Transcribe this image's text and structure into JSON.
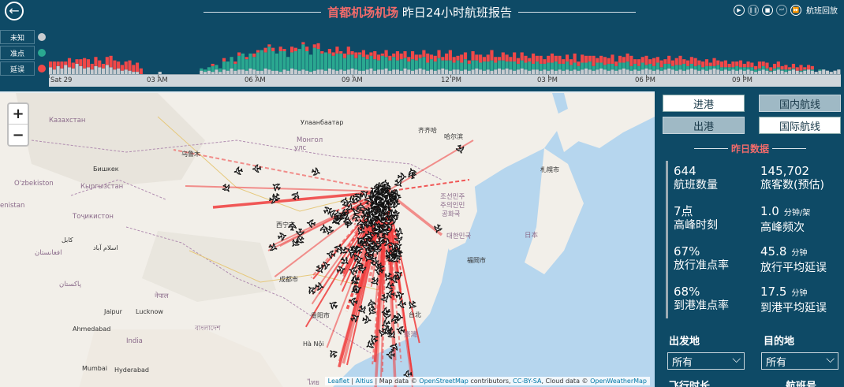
{
  "header": {
    "title_accent": "首都机场机场",
    "title_rest": "昨日24小时航班报告",
    "playback_label": "航班回放"
  },
  "legend": [
    {
      "label": "未知",
      "color": "#c8ccd0"
    },
    {
      "label": "准点",
      "color": "#2aa890"
    },
    {
      "label": "延误",
      "color": "#f04848"
    }
  ],
  "timeline": {
    "ticks": [
      "Sat 29",
      "03 AM",
      "06 AM",
      "09 AM",
      "12 PM",
      "03 PM",
      "06 PM",
      "09 PM"
    ],
    "unknown": [
      6,
      4,
      7,
      5,
      8,
      6,
      5,
      9,
      7,
      5,
      6,
      4,
      7,
      6,
      5,
      8,
      6,
      4,
      5,
      3,
      4,
      3,
      2,
      2,
      0,
      0,
      0,
      0,
      0,
      2,
      0,
      0,
      0,
      0,
      0,
      0,
      0,
      0,
      0,
      0,
      3,
      2,
      3,
      2,
      4,
      2,
      4,
      3,
      5,
      3,
      4,
      4,
      3,
      5,
      4,
      3,
      3,
      5,
      4,
      3,
      3,
      2,
      4,
      3,
      5,
      4,
      3,
      4,
      3,
      2,
      3,
      4,
      4,
      3,
      5,
      4,
      3,
      4,
      3,
      4,
      5,
      4,
      3,
      3,
      4,
      5,
      3,
      4,
      4,
      5,
      3,
      4,
      4,
      3,
      5,
      4,
      3,
      4,
      5,
      4,
      3,
      4,
      3,
      4,
      5,
      4,
      3,
      4,
      4,
      3,
      4,
      3,
      4,
      5,
      4,
      3,
      4,
      3,
      4,
      5,
      4,
      5,
      4,
      3,
      4,
      5,
      4,
      3,
      4,
      4,
      3,
      4,
      3,
      4,
      3,
      4,
      3,
      4,
      3,
      4,
      3,
      4,
      5,
      4,
      3,
      4,
      5,
      4,
      3,
      4,
      3,
      4,
      5,
      4,
      3,
      4,
      3,
      4,
      5,
      4,
      3,
      4,
      3,
      4,
      5,
      4,
      3,
      4,
      3,
      4,
      5,
      4,
      3,
      4,
      3,
      4,
      5,
      4,
      3,
      4,
      3,
      4,
      3,
      4,
      3,
      4,
      3,
      2,
      3,
      4,
      3,
      2,
      3,
      4,
      3,
      2,
      3,
      4,
      3,
      2,
      3,
      4,
      3,
      2,
      3,
      4,
      3,
      2,
      3,
      4
    ],
    "ontime": [
      0,
      0,
      0,
      0,
      0,
      0,
      0,
      0,
      0,
      0,
      0,
      0,
      0,
      0,
      0,
      0,
      0,
      0,
      0,
      0,
      0,
      0,
      0,
      0,
      0,
      0,
      0,
      0,
      0,
      0,
      0,
      0,
      0,
      0,
      0,
      0,
      0,
      0,
      0,
      0,
      2,
      2,
      3,
      5,
      4,
      3,
      7,
      8,
      10,
      6,
      12,
      14,
      10,
      13,
      11,
      16,
      18,
      14,
      20,
      17,
      15,
      18,
      16,
      12,
      14,
      16,
      19,
      22,
      17,
      15,
      20,
      18,
      14,
      16,
      13,
      12,
      15,
      14,
      11,
      13,
      12,
      10,
      14,
      12,
      9,
      11,
      10,
      8,
      12,
      10,
      9,
      11,
      8,
      10,
      9,
      7,
      10,
      8,
      9,
      11,
      7,
      9,
      8,
      10,
      7,
      8,
      9,
      6,
      8,
      7,
      9,
      6,
      8,
      7,
      6,
      8,
      7,
      9,
      6,
      7,
      8,
      6,
      7,
      8,
      5,
      7,
      6,
      8,
      5,
      7,
      6,
      5,
      7,
      6,
      8,
      5,
      6,
      7,
      5,
      6,
      4,
      6,
      5,
      7,
      4,
      6,
      5,
      4,
      6,
      5,
      4,
      6,
      5,
      7,
      4,
      5,
      4,
      6,
      3,
      5,
      4,
      6,
      3,
      5,
      4,
      3,
      5,
      4,
      6,
      3,
      4,
      3,
      5,
      2,
      4,
      3,
      2,
      4,
      3,
      2,
      3,
      2,
      4,
      2,
      3,
      2,
      3,
      2,
      2,
      3,
      2,
      1,
      2,
      2,
      1,
      2,
      1,
      1,
      0,
      1,
      1,
      0,
      1,
      0,
      1,
      0
    ],
    "delayed": [
      5,
      7,
      4,
      6,
      3,
      8,
      5,
      4,
      6,
      9,
      7,
      5,
      8,
      6,
      4,
      7,
      10,
      8,
      6,
      5,
      7,
      9,
      6,
      8,
      5,
      0,
      0,
      0,
      0,
      0,
      0,
      0,
      0,
      0,
      0,
      0,
      0,
      0,
      0,
      0,
      0,
      0,
      0,
      2,
      0,
      0,
      3,
      0,
      0,
      2,
      3,
      0,
      2,
      0,
      3,
      2,
      0,
      4,
      2,
      3,
      0,
      4,
      2,
      0,
      5,
      3,
      0,
      2,
      4,
      0,
      3,
      5,
      2,
      0,
      4,
      3,
      6,
      2,
      4,
      7,
      3,
      5,
      2,
      6,
      4,
      3,
      7,
      5,
      2,
      6,
      4,
      3,
      8,
      5,
      6,
      4,
      7,
      5,
      3,
      6,
      8,
      4,
      5,
      7,
      3,
      6,
      9,
      5,
      4,
      7,
      6,
      3,
      8,
      5,
      7,
      4,
      6,
      9,
      5,
      3,
      7,
      6,
      4,
      8,
      5,
      7,
      6,
      3,
      9,
      5,
      7,
      4,
      6,
      8,
      5,
      7,
      4,
      6,
      5,
      8,
      4,
      7,
      6,
      5,
      9,
      4,
      6,
      7,
      5,
      8,
      4,
      6,
      5,
      7,
      9,
      4,
      6,
      5,
      8,
      4,
      7,
      5,
      6,
      4,
      7,
      5,
      6,
      8,
      4,
      5,
      6,
      7,
      4,
      5,
      6,
      3,
      7,
      4,
      5,
      6,
      3,
      5,
      4,
      6,
      3,
      5,
      4,
      3,
      6,
      4,
      5,
      3,
      4,
      5,
      3,
      4,
      2,
      4,
      3,
      5,
      2,
      4,
      3
    ]
  },
  "map": {
    "labels": [
      {
        "text": "Казахстан",
        "kind": "region"
      },
      {
        "text": "Улаанбаатар",
        "kind": "city"
      },
      {
        "text": "Монгол",
        "kind": "region"
      },
      {
        "text": "улс",
        "kind": "region"
      },
      {
        "text": "齐齐哈",
        "kind": "city"
      },
      {
        "text": "哈尔滨",
        "kind": "city"
      },
      {
        "text": "札幌市",
        "kind": "city"
      },
      {
        "text": "乌鲁木",
        "kind": "city"
      },
      {
        "text": "Бишкек",
        "kind": "city"
      },
      {
        "text": "O'zbekiston",
        "kind": "region"
      },
      {
        "text": "Кыргызстан",
        "kind": "region"
      },
      {
        "text": "enistan",
        "kind": "region"
      },
      {
        "text": "Тоҷикистон",
        "kind": "region"
      },
      {
        "text": "조선민주",
        "kind": "region"
      },
      {
        "text": "주의인민",
        "kind": "region"
      },
      {
        "text": "공화국",
        "kind": "region"
      },
      {
        "text": "대한민국",
        "kind": "region"
      },
      {
        "text": "日本",
        "kind": "region"
      },
      {
        "text": "福岡市",
        "kind": "city"
      },
      {
        "text": "西宁市",
        "kind": "city"
      },
      {
        "text": "کابل",
        "kind": "city"
      },
      {
        "text": "اسلام آباد",
        "kind": "city"
      },
      {
        "text": "افغانستان",
        "kind": "region"
      },
      {
        "text": "پاکستان",
        "kind": "region"
      },
      {
        "text": "成都市",
        "kind": "city"
      },
      {
        "text": "贵阳市",
        "kind": "city"
      },
      {
        "text": "Jaipur",
        "kind": "city"
      },
      {
        "text": "Lucknow",
        "kind": "city"
      },
      {
        "text": "नेपाल",
        "kind": "region"
      },
      {
        "text": "বাংলাদেশ",
        "kind": "region"
      },
      {
        "text": "Ahmedabad",
        "kind": "city"
      },
      {
        "text": "India",
        "kind": "region"
      },
      {
        "text": "Mumbai",
        "kind": "city"
      },
      {
        "text": "Hyderabad",
        "kind": "city"
      },
      {
        "text": "Hà Nội",
        "kind": "city"
      },
      {
        "text": "台北",
        "kind": "city"
      },
      {
        "text": "臺灣",
        "kind": "region"
      },
      {
        "text": "ไทย",
        "kind": "region"
      }
    ],
    "zoom_in": "+",
    "zoom_out": "−",
    "attribution": {
      "p1": "Leaflet",
      "p2": " | ",
      "p3": "Altius",
      "p4": " | Map data © ",
      "p5": "OpenStreetMap",
      "p6": " contributors, ",
      "p7": "CC-BY-SA",
      "p8": ", Cloud data © ",
      "p9": "OpenWeatherMap"
    }
  },
  "panel": {
    "toggles": {
      "arrive": "进港",
      "depart": "出港",
      "domestic": "国内航线",
      "intl": "国际航线"
    },
    "stats_title": "昨日数据",
    "stats": [
      {
        "value": "644",
        "unit": "",
        "label": "航班数量"
      },
      {
        "value": "145,702",
        "unit": "",
        "label": "旅客数(预估)"
      },
      {
        "value": "7点",
        "unit": "",
        "label": "高峰时刻"
      },
      {
        "value": "1.0",
        "unit": "分钟/架",
        "label": "高峰频次"
      },
      {
        "value": "67%",
        "unit": "",
        "label": "放行准点率"
      },
      {
        "value": "45.8",
        "unit": "分钟",
        "label": "放行平均延误"
      },
      {
        "value": "68%",
        "unit": "",
        "label": "到港准点率"
      },
      {
        "value": "17.5",
        "unit": "分钟",
        "label": "到港平均延误"
      }
    ],
    "filters": {
      "origin_label": "出发地",
      "origin_value": "所有",
      "dest_label": "目的地",
      "dest_value": "所有",
      "duration_label": "飞行时长",
      "flightno_label": "航班号"
    }
  }
}
